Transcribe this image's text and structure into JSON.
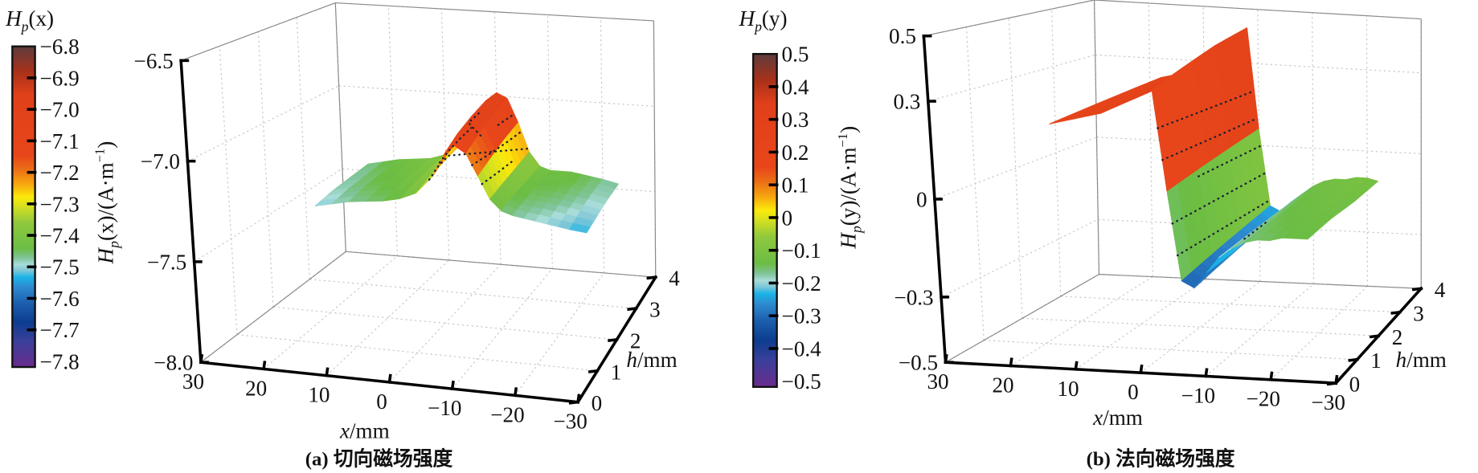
{
  "colormap_stops": [
    [
      0,
      "#6a2c8e"
    ],
    [
      0.08,
      "#3b3f9a"
    ],
    [
      0.14,
      "#0c3d8f"
    ],
    [
      0.2,
      "#1d5fae"
    ],
    [
      0.25,
      "#2e8bd0"
    ],
    [
      0.28,
      "#1ab3e6"
    ],
    [
      0.3,
      "#7cc6d8"
    ],
    [
      0.32,
      "#a8dcd8"
    ],
    [
      0.34,
      "#7fc49a"
    ],
    [
      0.37,
      "#6bbd45"
    ],
    [
      0.45,
      "#8fc83d"
    ],
    [
      0.5,
      "#d4e020"
    ],
    [
      0.53,
      "#fbea0b"
    ],
    [
      0.57,
      "#f7a70f"
    ],
    [
      0.62,
      "#eb6a16"
    ],
    [
      0.66,
      "#e8461a"
    ],
    [
      0.85,
      "#e0401a"
    ],
    [
      0.92,
      "#a9311a"
    ],
    [
      1,
      "#5e3c3c"
    ]
  ],
  "chart_data": [
    {
      "type": "surface",
      "caption": "(a) 切向磁场强度",
      "colorbar": {
        "title": {
          "symbol": "H",
          "sub": "p",
          "arg": "(x)"
        },
        "range": [
          -7.8,
          -6.8
        ],
        "ticks": [
          {
            "v": -6.8,
            "label": "−6.8"
          },
          {
            "v": -6.9,
            "label": "−6.9"
          },
          {
            "v": -7.0,
            "label": "−7.0"
          },
          {
            "v": -7.1,
            "label": "−7.1"
          },
          {
            "v": -7.2,
            "label": "−7.2"
          },
          {
            "v": -7.3,
            "label": "−7.3"
          },
          {
            "v": -7.4,
            "label": "−7.4"
          },
          {
            "v": -7.5,
            "label": "−7.5"
          },
          {
            "v": -7.6,
            "label": "−7.6"
          },
          {
            "v": -7.7,
            "label": "−7.7"
          },
          {
            "v": -7.8,
            "label": "−7.8"
          }
        ]
      },
      "axes": {
        "z": {
          "label": {
            "symbol": "H",
            "sub": "p",
            "arg": "(x)/(A·m",
            "sup": "−1",
            "close": ")"
          },
          "range": [
            -8.0,
            -6.5
          ],
          "ticks": [
            {
              "v": -8.0,
              "label": "−8.0"
            },
            {
              "v": -7.5,
              "label": "−7.5"
            },
            {
              "v": -7.0,
              "label": "−7.0"
            },
            {
              "v": -6.5,
              "label": "−6.5"
            }
          ]
        },
        "x": {
          "label": {
            "var": "x",
            "unit": "/mm"
          },
          "range": [
            -30,
            30
          ],
          "ticks": [
            {
              "v": 30,
              "label": "30"
            },
            {
              "v": 20,
              "label": "20"
            },
            {
              "v": 10,
              "label": "10"
            },
            {
              "v": 0,
              "label": "0"
            },
            {
              "v": -10,
              "label": "−10"
            },
            {
              "v": -20,
              "label": "−20"
            },
            {
              "v": -30,
              "label": "−30"
            }
          ]
        },
        "h": {
          "label": {
            "var": "h",
            "unit": "/mm"
          },
          "range": [
            0,
            4
          ],
          "ticks": [
            {
              "v": 0,
              "label": "0"
            },
            {
              "v": 1,
              "label": "1"
            },
            {
              "v": 2,
              "label": "2"
            },
            {
              "v": 3,
              "label": "3"
            },
            {
              "v": 4,
              "label": "4"
            }
          ]
        }
      },
      "grid": true,
      "x": [
        25,
        22,
        19,
        16,
        13,
        10,
        7,
        4,
        2,
        0,
        -2,
        -4,
        -6,
        -8,
        -10,
        -12,
        -14,
        -16,
        -18,
        -20,
        -23
      ],
      "h": [
        2.5,
        3,
        3.5,
        4
      ],
      "z": [
        [
          -7.5,
          -7.48,
          -7.46,
          -7.45,
          -7.44,
          -7.42,
          -7.38,
          -7.28,
          -7.16,
          -7.1,
          -7.14,
          -7.26,
          -7.38,
          -7.44,
          -7.46,
          -7.47,
          -7.48,
          -7.49,
          -7.5,
          -7.51,
          -7.52
        ],
        [
          -7.48,
          -7.46,
          -7.44,
          -7.43,
          -7.42,
          -7.4,
          -7.35,
          -7.22,
          -7.1,
          -7.05,
          -7.09,
          -7.22,
          -7.36,
          -7.42,
          -7.44,
          -7.45,
          -7.45,
          -7.46,
          -7.47,
          -7.48,
          -7.5
        ],
        [
          -7.47,
          -7.45,
          -7.43,
          -7.42,
          -7.41,
          -7.38,
          -7.32,
          -7.18,
          -7.06,
          -7.01,
          -7.04,
          -7.18,
          -7.34,
          -7.41,
          -7.43,
          -7.43,
          -7.43,
          -7.44,
          -7.45,
          -7.46,
          -7.48
        ],
        [
          -7.46,
          -7.44,
          -7.42,
          -7.41,
          -7.4,
          -7.37,
          -7.3,
          -7.15,
          -7.03,
          -6.98,
          -7.01,
          -7.15,
          -7.32,
          -7.4,
          -7.42,
          -7.42,
          -7.42,
          -7.43,
          -7.44,
          -7.45,
          -7.47
        ]
      ],
      "contour_levels": [
        -7.3,
        -7.2,
        -7.1
      ]
    },
    {
      "type": "surface",
      "caption": "(b) 法向磁场强度",
      "colorbar": {
        "title": {
          "symbol": "H",
          "sub": "p",
          "arg": "(y)"
        },
        "range": [
          -0.5,
          0.5
        ],
        "ticks": [
          {
            "v": 0.5,
            "label": "0.5"
          },
          {
            "v": 0.4,
            "label": "0.4"
          },
          {
            "v": 0.3,
            "label": "0.3"
          },
          {
            "v": 0.2,
            "label": "0.2"
          },
          {
            "v": 0.1,
            "label": "0.1"
          },
          {
            "v": 0,
            "label": "0"
          },
          {
            "v": -0.1,
            "label": "−0.1"
          },
          {
            "v": -0.2,
            "label": "−0.2"
          },
          {
            "v": -0.3,
            "label": "−0.3"
          },
          {
            "v": -0.4,
            "label": "−0.4"
          },
          {
            "v": -0.5,
            "label": "−0.5"
          }
        ]
      },
      "axes": {
        "z": {
          "label": {
            "symbol": "H",
            "sub": "p",
            "arg": "(y)/(A·m",
            "sup": "−1",
            "close": ")"
          },
          "range": [
            -0.5,
            0.5
          ],
          "ticks": [
            {
              "v": -0.5,
              "label": "−0.5"
            },
            {
              "v": -0.3,
              "label": "−0.3"
            },
            {
              "v": 0,
              "label": "0"
            },
            {
              "v": 0.3,
              "label": "0.3"
            },
            {
              "v": 0.5,
              "label": "0.5"
            }
          ]
        },
        "x": {
          "label": {
            "var": "x",
            "unit": "/mm"
          },
          "range": [
            -30,
            30
          ],
          "ticks": [
            {
              "v": 30,
              "label": "30"
            },
            {
              "v": 20,
              "label": "20"
            },
            {
              "v": 10,
              "label": "10"
            },
            {
              "v": 0,
              "label": "0"
            },
            {
              "v": -10,
              "label": "−10"
            },
            {
              "v": -20,
              "label": "−20"
            },
            {
              "v": -30,
              "label": "−30"
            }
          ]
        },
        "h": {
          "label": {
            "var": "h",
            "unit": "/mm"
          },
          "range": [
            0,
            4
          ],
          "ticks": [
            {
              "v": 0,
              "label": "0"
            },
            {
              "v": 1,
              "label": "1"
            },
            {
              "v": 2,
              "label": "2"
            },
            {
              "v": 3,
              "label": "3"
            },
            {
              "v": 4,
              "label": "4"
            }
          ]
        }
      },
      "grid": true,
      "x": [
        18,
        16,
        14,
        12,
        10,
        8,
        6,
        4,
        2,
        0,
        -2,
        -4,
        -6,
        -8,
        -10,
        -12,
        -14,
        -16,
        -18,
        -20,
        -22
      ],
      "h": [
        1,
        2,
        3,
        4
      ],
      "z": [
        [
          0.2,
          0.21,
          0.22,
          0.23,
          0.24,
          0.26,
          0.28,
          0.3,
          0.32,
          0.0,
          -0.28,
          -0.3,
          -0.25,
          -0.2,
          -0.17,
          -0.15,
          -0.14,
          -0.14,
          -0.13,
          -0.13,
          -0.13
        ],
        [
          0.21,
          0.22,
          0.23,
          0.24,
          0.25,
          0.27,
          0.3,
          0.33,
          0.36,
          0.02,
          -0.26,
          -0.28,
          -0.24,
          -0.19,
          -0.16,
          -0.14,
          -0.13,
          -0.13,
          -0.12,
          -0.12,
          -0.12
        ],
        [
          0.22,
          0.23,
          0.24,
          0.25,
          0.26,
          0.29,
          0.33,
          0.37,
          0.4,
          0.04,
          -0.24,
          -0.26,
          -0.22,
          -0.18,
          -0.15,
          -0.13,
          -0.12,
          -0.12,
          -0.11,
          -0.11,
          -0.12
        ],
        [
          0.23,
          0.24,
          0.25,
          0.26,
          0.28,
          0.31,
          0.36,
          0.4,
          0.43,
          0.06,
          -0.22,
          -0.24,
          -0.2,
          -0.17,
          -0.14,
          -0.12,
          -0.11,
          -0.11,
          -0.1,
          -0.1,
          -0.11
        ]
      ],
      "contour_levels": [
        0.2,
        0.1,
        0,
        -0.1,
        -0.2
      ]
    }
  ]
}
